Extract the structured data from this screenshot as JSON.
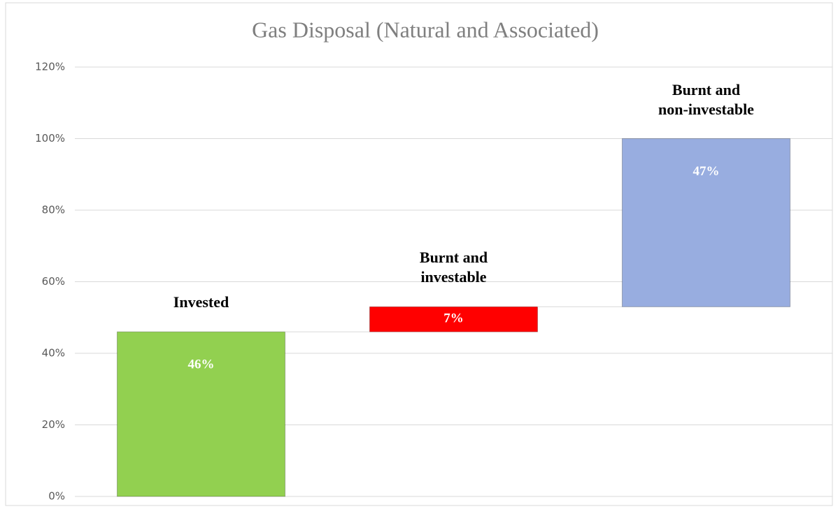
{
  "chart_data": {
    "type": "waterfall",
    "title": "Gas Disposal (Natural and Associated)",
    "categories": [
      "Invested",
      "Burnt and\ninvestable",
      "Burnt and\nnon-investable"
    ],
    "values": [
      46,
      7,
      47
    ],
    "value_labels": [
      "46%",
      "7%",
      "47%"
    ],
    "colors": [
      "#92d050",
      "#ff0000",
      "#98ade0"
    ],
    "ylim": [
      0,
      120
    ],
    "yticks": [
      {
        "value": 0,
        "label": "0%"
      },
      {
        "value": 20,
        "label": "20%"
      },
      {
        "value": 40,
        "label": "40%"
      },
      {
        "value": 60,
        "label": "60%"
      },
      {
        "value": 80,
        "label": "80%"
      },
      {
        "value": 100,
        "label": "100%"
      },
      {
        "value": 120,
        "label": "120%"
      }
    ],
    "grid": true
  }
}
